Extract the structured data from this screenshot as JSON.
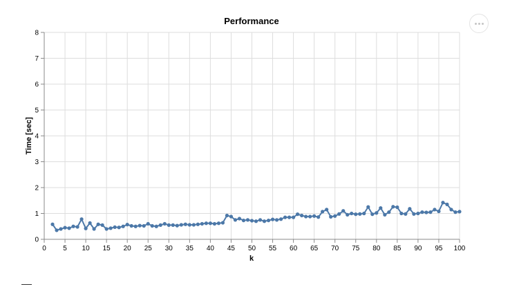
{
  "chart_data": {
    "type": "line",
    "title": "Performance",
    "xlabel": "k",
    "ylabel": "Time [sec]",
    "xlim": [
      0,
      100
    ],
    "ylim": [
      0,
      8
    ],
    "x_ticks": [
      0,
      5,
      10,
      15,
      20,
      25,
      30,
      35,
      40,
      45,
      50,
      55,
      60,
      65,
      70,
      75,
      80,
      85,
      90,
      95,
      100
    ],
    "y_ticks": [
      0,
      1,
      2,
      3,
      4,
      5,
      6,
      7,
      8
    ],
    "grid": true,
    "line_color": "#4c78a8",
    "series": [
      {
        "x": [
          2,
          3,
          4,
          5,
          6,
          7,
          8,
          9,
          10,
          11,
          12,
          13,
          14,
          15,
          16,
          17,
          18,
          19,
          20,
          21,
          22,
          23,
          24,
          25,
          26,
          27,
          28,
          29,
          30,
          31,
          32,
          33,
          34,
          35,
          36,
          37,
          38,
          39,
          40,
          41,
          42,
          43,
          44,
          45,
          46,
          47,
          48,
          49,
          50,
          51,
          52,
          53,
          54,
          55,
          56,
          57,
          58,
          59,
          60,
          61,
          62,
          63,
          64,
          65,
          66,
          67,
          68,
          69,
          70,
          71,
          72,
          73,
          74,
          75,
          76,
          77,
          78,
          79,
          80,
          81,
          82,
          83,
          84,
          85,
          86,
          87,
          88,
          89,
          90,
          91,
          92,
          93,
          94,
          95,
          96,
          97,
          98,
          99,
          100
        ],
        "y": [
          0.58,
          0.35,
          0.4,
          0.45,
          0.43,
          0.5,
          0.48,
          0.78,
          0.42,
          0.63,
          0.4,
          0.58,
          0.55,
          0.4,
          0.43,
          0.47,
          0.46,
          0.5,
          0.57,
          0.52,
          0.5,
          0.53,
          0.52,
          0.6,
          0.52,
          0.5,
          0.55,
          0.6,
          0.55,
          0.55,
          0.53,
          0.56,
          0.58,
          0.56,
          0.56,
          0.58,
          0.6,
          0.62,
          0.62,
          0.6,
          0.62,
          0.64,
          0.92,
          0.88,
          0.75,
          0.8,
          0.73,
          0.75,
          0.72,
          0.7,
          0.75,
          0.7,
          0.73,
          0.77,
          0.75,
          0.78,
          0.85,
          0.85,
          0.85,
          0.97,
          0.92,
          0.88,
          0.88,
          0.9,
          0.86,
          1.07,
          1.15,
          0.87,
          0.9,
          0.98,
          1.1,
          0.95,
          1.0,
          0.97,
          0.98,
          1.0,
          1.25,
          0.97,
          1.02,
          1.21,
          0.95,
          1.05,
          1.26,
          1.24,
          1.0,
          0.98,
          1.18,
          0.98,
          1.0,
          1.05,
          1.04,
          1.05,
          1.15,
          1.08,
          1.42,
          1.35,
          1.15,
          1.05,
          1.07
        ]
      }
    ]
  }
}
